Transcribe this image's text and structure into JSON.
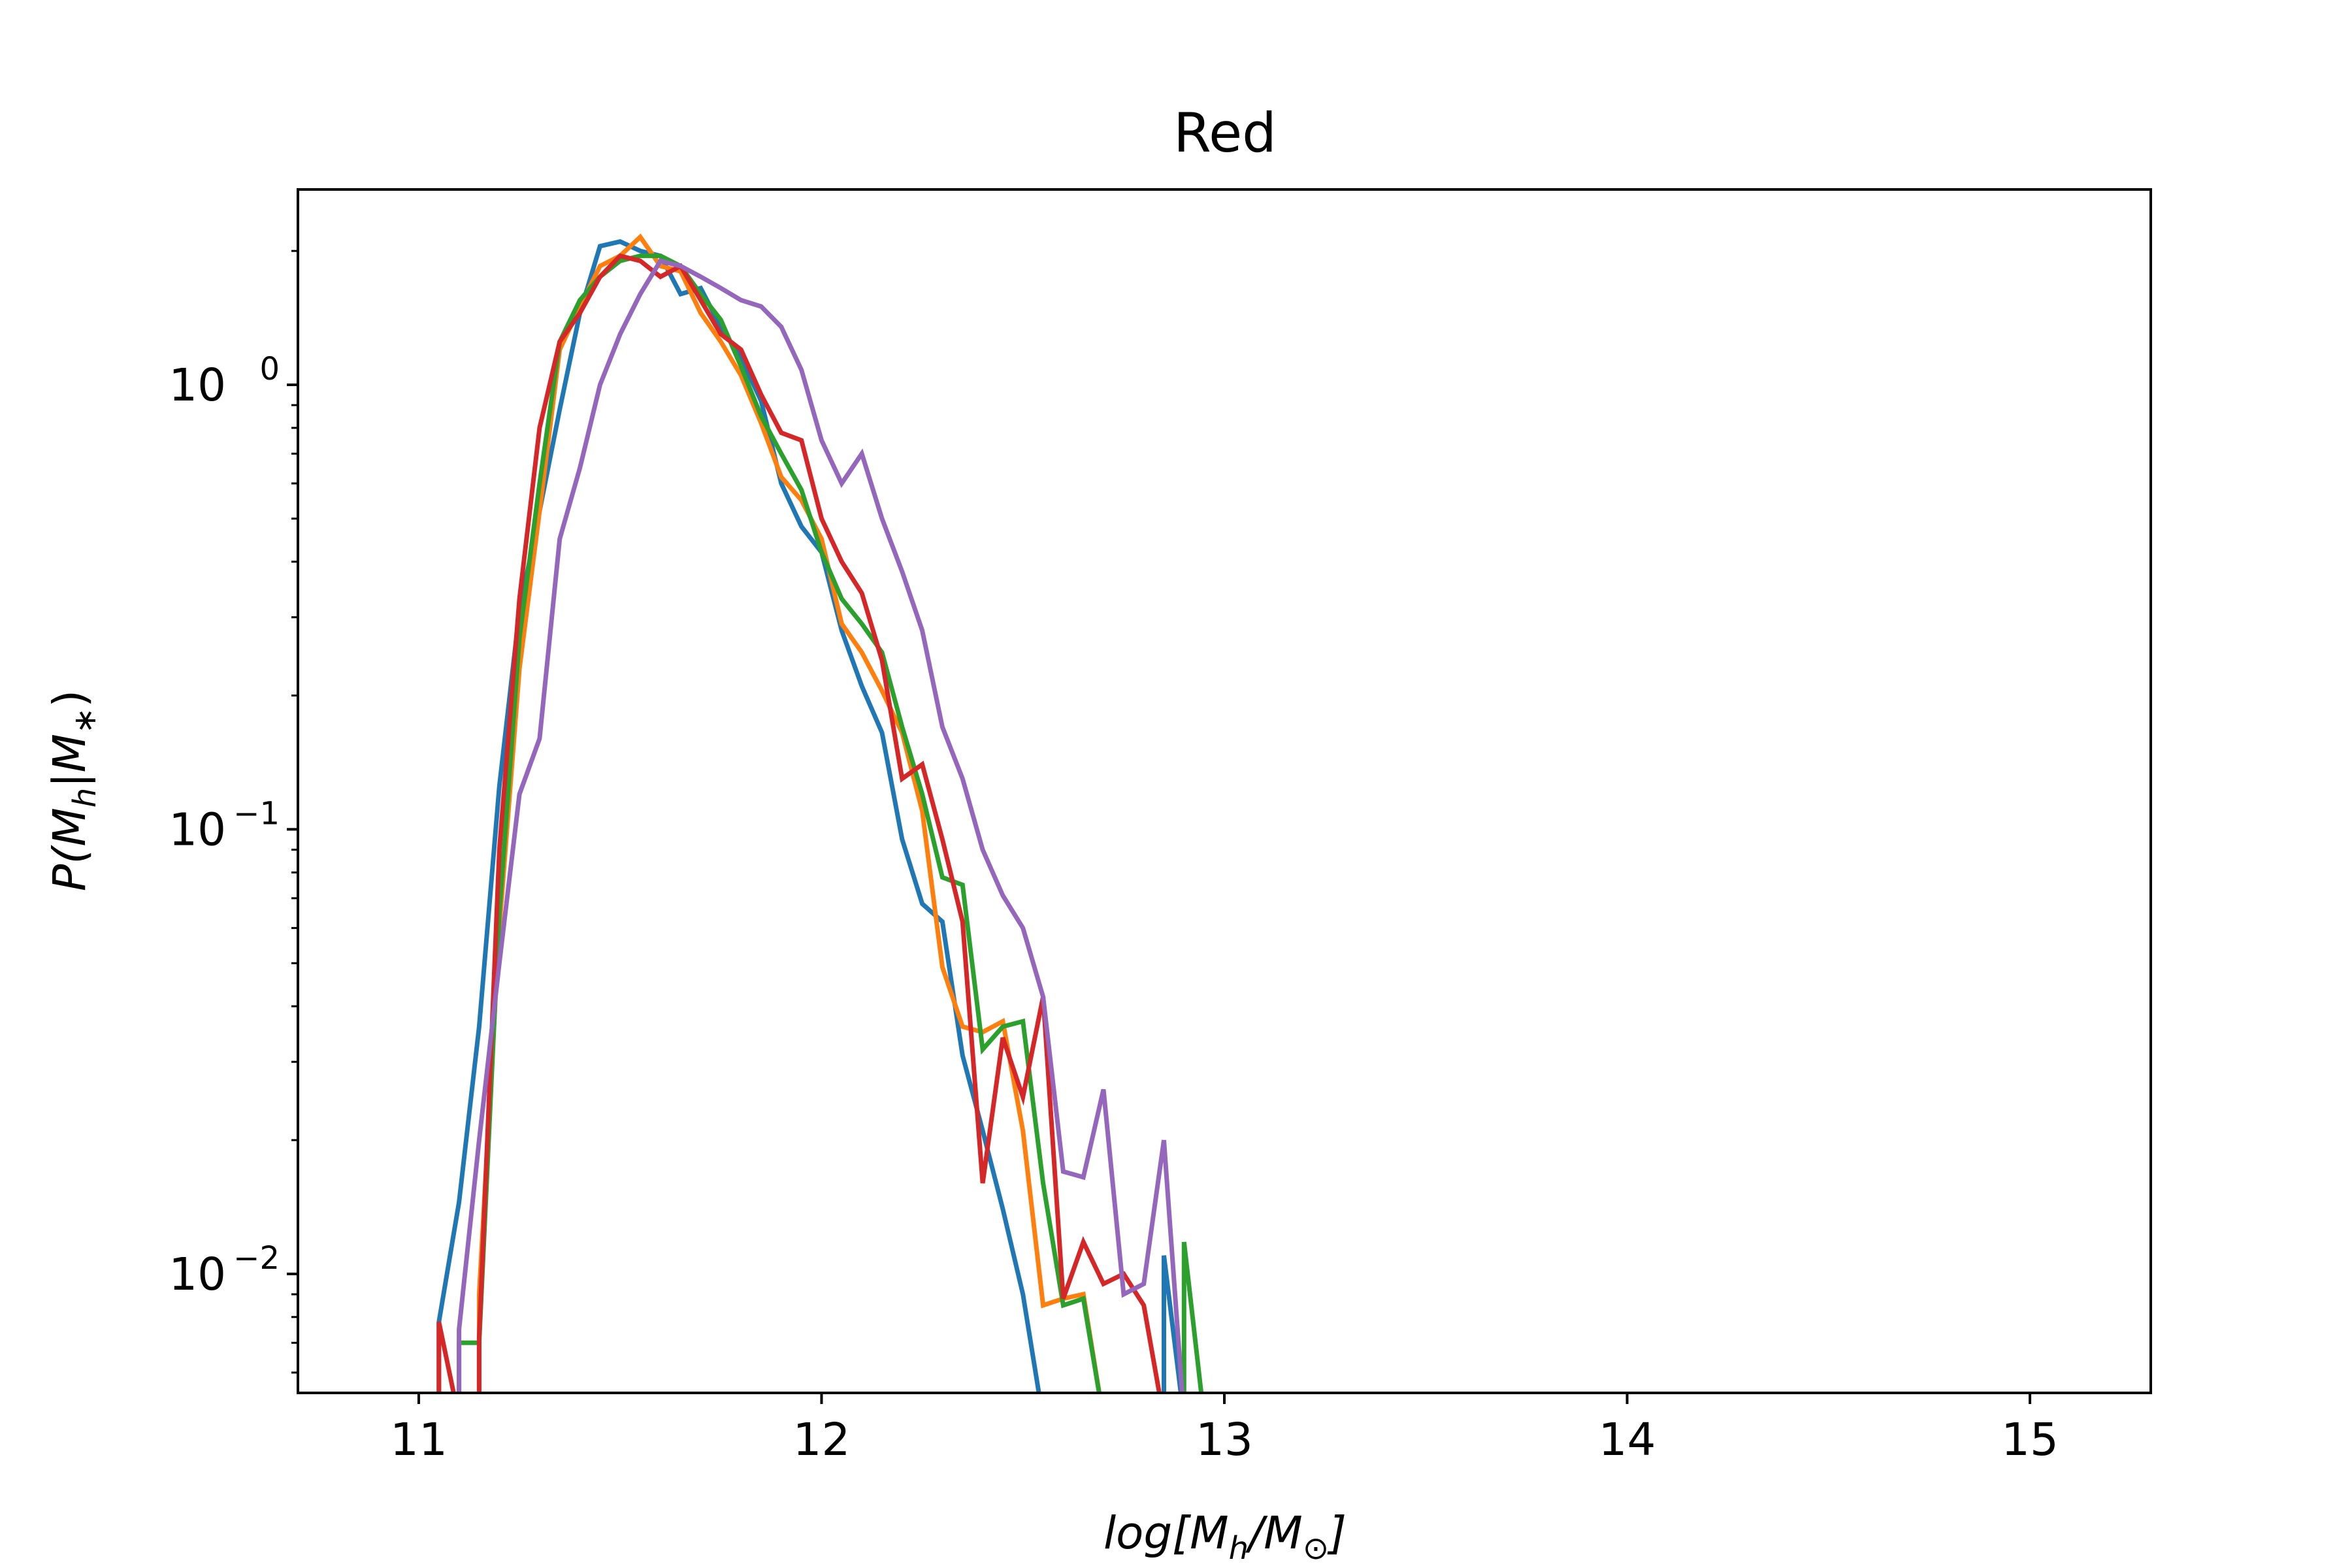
{
  "chart_data": {
    "type": "line",
    "title": "Red",
    "xlabel": "log[M_h/M_⊙]",
    "ylabel": "P(M_h|M_*)",
    "xlim": [
      10.7,
      15.3
    ],
    "ylim": [
      0.0054,
      2.75
    ],
    "yscale": "log",
    "grid": false,
    "xticks": [
      {
        "value": 11,
        "label": "11"
      },
      {
        "value": 12,
        "label": "12"
      },
      {
        "value": 13,
        "label": "13"
      },
      {
        "value": 14,
        "label": "14"
      },
      {
        "value": 15,
        "label": "15"
      }
    ],
    "yticks": [
      {
        "value": 1,
        "base": "10",
        "exp": "0"
      },
      {
        "value": 0.1,
        "base": "10",
        "exp": "−1"
      },
      {
        "value": 0.01,
        "base": "10",
        "exp": "−2"
      }
    ],
    "series": [
      {
        "color": "#1f77b4",
        "x": [
          11.05,
          11.1,
          11.15,
          11.2,
          11.25,
          11.3,
          11.35,
          11.4,
          11.45,
          11.5,
          11.55,
          11.6,
          11.65,
          11.7,
          11.75,
          11.8,
          11.85,
          11.9,
          11.95,
          12.0,
          12.05,
          12.1,
          12.15,
          12.2,
          12.25,
          12.3,
          12.35,
          12.4,
          12.45,
          12.5,
          12.55,
          12.6,
          12.65,
          12.7,
          12.75,
          12.8,
          12.85,
          12.9
        ],
        "y": [
          0.0078,
          0.0145,
          0.036,
          0.125,
          0.31,
          0.52,
          0.88,
          1.45,
          2.05,
          2.1,
          2.0,
          1.95,
          1.6,
          1.65,
          1.35,
          1.15,
          0.92,
          0.6,
          0.48,
          0.42,
          0.28,
          0.21,
          0.165,
          0.095,
          0.068,
          0.062,
          0.031,
          0.021,
          0.014,
          0.009,
          null,
          null,
          null,
          null,
          null,
          null,
          0.011,
          null
        ]
      },
      {
        "color": "#ff7f0e",
        "x": [
          11.05,
          11.1,
          11.15,
          11.2,
          11.25,
          11.3,
          11.35,
          11.4,
          11.45,
          11.5,
          11.55,
          11.6,
          11.65,
          11.7,
          11.75,
          11.8,
          11.85,
          11.9,
          11.95,
          12.0,
          12.05,
          12.1,
          12.15,
          12.2,
          12.25,
          12.3,
          12.35,
          12.4,
          12.45,
          12.5,
          12.55,
          12.6,
          12.65,
          12.7,
          12.75,
          12.8,
          12.85,
          12.9
        ],
        "y": [
          null,
          null,
          0.009,
          0.06,
          0.23,
          0.52,
          1.2,
          1.5,
          1.85,
          1.95,
          2.15,
          1.85,
          1.8,
          1.45,
          1.25,
          1.05,
          0.82,
          0.62,
          0.55,
          0.45,
          0.29,
          0.25,
          0.205,
          0.165,
          0.11,
          0.049,
          0.036,
          0.035,
          0.037,
          0.021,
          0.0085,
          0.0088,
          0.009,
          null,
          null,
          null,
          null,
          null
        ]
      },
      {
        "color": "#2ca02c",
        "x": [
          11.05,
          11.1,
          11.15,
          11.2,
          11.25,
          11.3,
          11.35,
          11.4,
          11.45,
          11.5,
          11.55,
          11.6,
          11.65,
          11.7,
          11.75,
          11.8,
          11.85,
          11.9,
          11.95,
          12.0,
          12.05,
          12.1,
          12.15,
          12.2,
          12.25,
          12.3,
          12.35,
          12.4,
          12.45,
          12.5,
          12.55,
          12.6,
          12.65,
          12.7,
          12.75,
          12.8,
          12.85,
          12.9
        ],
        "y": [
          null,
          0.007,
          0.007,
          0.065,
          0.27,
          0.6,
          1.25,
          1.55,
          1.75,
          1.9,
          1.95,
          1.95,
          1.85,
          1.6,
          1.4,
          1.1,
          0.85,
          0.7,
          0.58,
          0.42,
          0.33,
          0.29,
          0.25,
          0.17,
          0.12,
          0.078,
          0.075,
          0.032,
          0.036,
          0.037,
          0.016,
          0.0085,
          0.0088,
          null,
          null,
          null,
          null,
          0.0118
        ]
      },
      {
        "color": "#d62728",
        "x": [
          11.05,
          11.1,
          11.15,
          11.2,
          11.25,
          11.3,
          11.35,
          11.4,
          11.45,
          11.5,
          11.55,
          11.6,
          11.65,
          11.7,
          11.75,
          11.8,
          11.85,
          11.9,
          11.95,
          12.0,
          12.05,
          12.1,
          12.15,
          12.2,
          12.25,
          12.3,
          12.35,
          12.4,
          12.45,
          12.5,
          12.55,
          12.6,
          12.65,
          12.7,
          12.75,
          12.8,
          12.85,
          12.9
        ],
        "y": [
          0.0078,
          null,
          0.0072,
          0.09,
          0.33,
          0.8,
          1.25,
          1.45,
          1.75,
          1.95,
          1.9,
          1.75,
          1.85,
          1.55,
          1.3,
          1.2,
          0.95,
          0.78,
          0.75,
          0.5,
          0.4,
          0.34,
          0.24,
          0.13,
          0.14,
          0.095,
          0.062,
          0.016,
          0.034,
          0.025,
          0.042,
          0.0088,
          0.0118,
          0.0095,
          0.01,
          0.0085,
          null,
          null
        ]
      },
      {
        "color": "#9467bd",
        "x": [
          11.05,
          11.1,
          11.15,
          11.2,
          11.25,
          11.3,
          11.35,
          11.4,
          11.45,
          11.5,
          11.55,
          11.6,
          11.65,
          11.7,
          11.75,
          11.8,
          11.85,
          11.9,
          11.95,
          12.0,
          12.05,
          12.1,
          12.15,
          12.2,
          12.25,
          12.3,
          12.35,
          12.4,
          12.45,
          12.5,
          12.55,
          12.6,
          12.65,
          12.7,
          12.75,
          12.8,
          12.85,
          12.9
        ],
        "y": [
          null,
          0.0075,
          0.02,
          0.05,
          0.12,
          0.16,
          0.45,
          0.65,
          1.0,
          1.3,
          1.6,
          1.9,
          1.85,
          1.75,
          1.65,
          1.55,
          1.5,
          1.35,
          1.08,
          0.75,
          0.6,
          0.7,
          0.5,
          0.38,
          0.28,
          0.17,
          0.13,
          0.09,
          0.071,
          0.06,
          0.042,
          0.017,
          0.0165,
          0.026,
          0.009,
          0.0095,
          0.02,
          null
        ]
      }
    ]
  }
}
